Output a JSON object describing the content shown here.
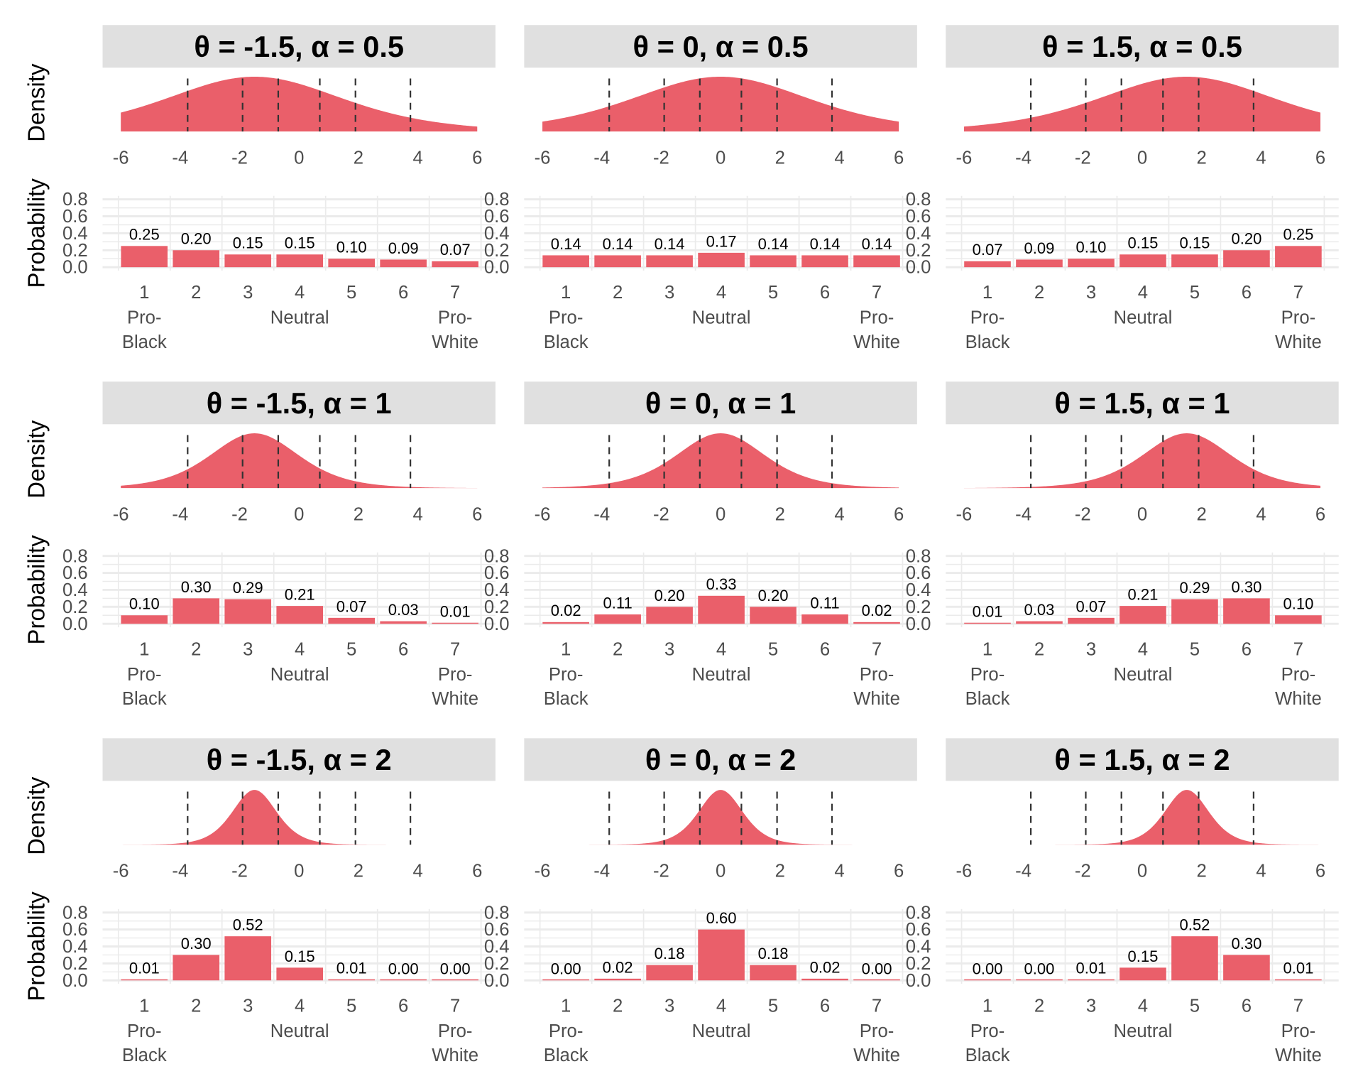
{
  "colors": {
    "fill": "#EA5F6A",
    "strip": "#E0E0E0",
    "grid": "#EBEBEB",
    "cutline": "#333333"
  },
  "chart_data": {
    "type": "faceted density + bar",
    "density_ylabel": "Density",
    "bar_ylabel": "Probability",
    "density_xticks": [
      "-6",
      "-4",
      "-2",
      "0",
      "2",
      "4",
      "6"
    ],
    "density_xlim": [
      -6,
      6
    ],
    "cutpoints": [
      -3.75,
      -1.9,
      -0.7,
      0.7,
      1.9,
      3.75
    ],
    "bar_yticks": [
      "0.0",
      "0.2",
      "0.4",
      "0.6",
      "0.8"
    ],
    "bar_ylim": [
      0,
      0.8
    ],
    "categories": [
      "1",
      "2",
      "3",
      "4",
      "5",
      "6",
      "7"
    ],
    "category_labels": {
      "first": [
        "Pro-",
        "Black"
      ],
      "middle": "Neutral",
      "last": [
        "Pro-",
        "White"
      ]
    },
    "panels": [
      {
        "title": "θ = -1.5, α = 0.5",
        "theta": -1.5,
        "alpha": 0.5,
        "values": [
          0.25,
          0.2,
          0.15,
          0.15,
          0.1,
          0.09,
          0.07
        ],
        "labels": [
          "0.25",
          "0.20",
          "0.15",
          "0.15",
          "0.10",
          "0.09",
          "0.07"
        ]
      },
      {
        "title": "θ = 0, α = 0.5",
        "theta": 0,
        "alpha": 0.5,
        "values": [
          0.14,
          0.14,
          0.14,
          0.17,
          0.14,
          0.14,
          0.14
        ],
        "labels": [
          "0.14",
          "0.14",
          "0.14",
          "0.17",
          "0.14",
          "0.14",
          "0.14"
        ]
      },
      {
        "title": "θ = 1.5, α = 0.5",
        "theta": 1.5,
        "alpha": 0.5,
        "values": [
          0.07,
          0.09,
          0.1,
          0.15,
          0.15,
          0.2,
          0.25
        ],
        "labels": [
          "0.07",
          "0.09",
          "0.10",
          "0.15",
          "0.15",
          "0.20",
          "0.25"
        ]
      },
      {
        "title": "θ = -1.5, α = 1",
        "theta": -1.5,
        "alpha": 1,
        "values": [
          0.1,
          0.3,
          0.29,
          0.21,
          0.07,
          0.03,
          0.01
        ],
        "labels": [
          "0.10",
          "0.30",
          "0.29",
          "0.21",
          "0.07",
          "0.03",
          "0.01"
        ]
      },
      {
        "title": "θ = 0, α = 1",
        "theta": 0,
        "alpha": 1,
        "values": [
          0.02,
          0.11,
          0.2,
          0.33,
          0.2,
          0.11,
          0.02
        ],
        "labels": [
          "0.02",
          "0.11",
          "0.20",
          "0.33",
          "0.20",
          "0.11",
          "0.02"
        ]
      },
      {
        "title": "θ = 1.5, α = 1",
        "theta": 1.5,
        "alpha": 1,
        "values": [
          0.01,
          0.03,
          0.07,
          0.21,
          0.29,
          0.3,
          0.1
        ],
        "labels": [
          "0.01",
          "0.03",
          "0.07",
          "0.21",
          "0.29",
          "0.30",
          "0.10"
        ]
      },
      {
        "title": "θ = -1.5, α = 2",
        "theta": -1.5,
        "alpha": 2,
        "values": [
          0.01,
          0.3,
          0.52,
          0.15,
          0.01,
          0.0,
          0.0
        ],
        "labels": [
          "0.01",
          "0.30",
          "0.52",
          "0.15",
          "0.01",
          "0.00",
          "0.00"
        ]
      },
      {
        "title": "θ = 0, α = 2",
        "theta": 0,
        "alpha": 2,
        "values": [
          0.0,
          0.02,
          0.18,
          0.6,
          0.18,
          0.02,
          0.0
        ],
        "labels": [
          "0.00",
          "0.02",
          "0.18",
          "0.60",
          "0.18",
          "0.02",
          "0.00"
        ]
      },
      {
        "title": "θ = 1.5, α = 2",
        "theta": 1.5,
        "alpha": 2,
        "values": [
          0.0,
          0.0,
          0.01,
          0.15,
          0.52,
          0.3,
          0.01
        ],
        "labels": [
          "0.00",
          "0.00",
          "0.01",
          "0.15",
          "0.52",
          "0.30",
          "0.01"
        ]
      }
    ]
  }
}
